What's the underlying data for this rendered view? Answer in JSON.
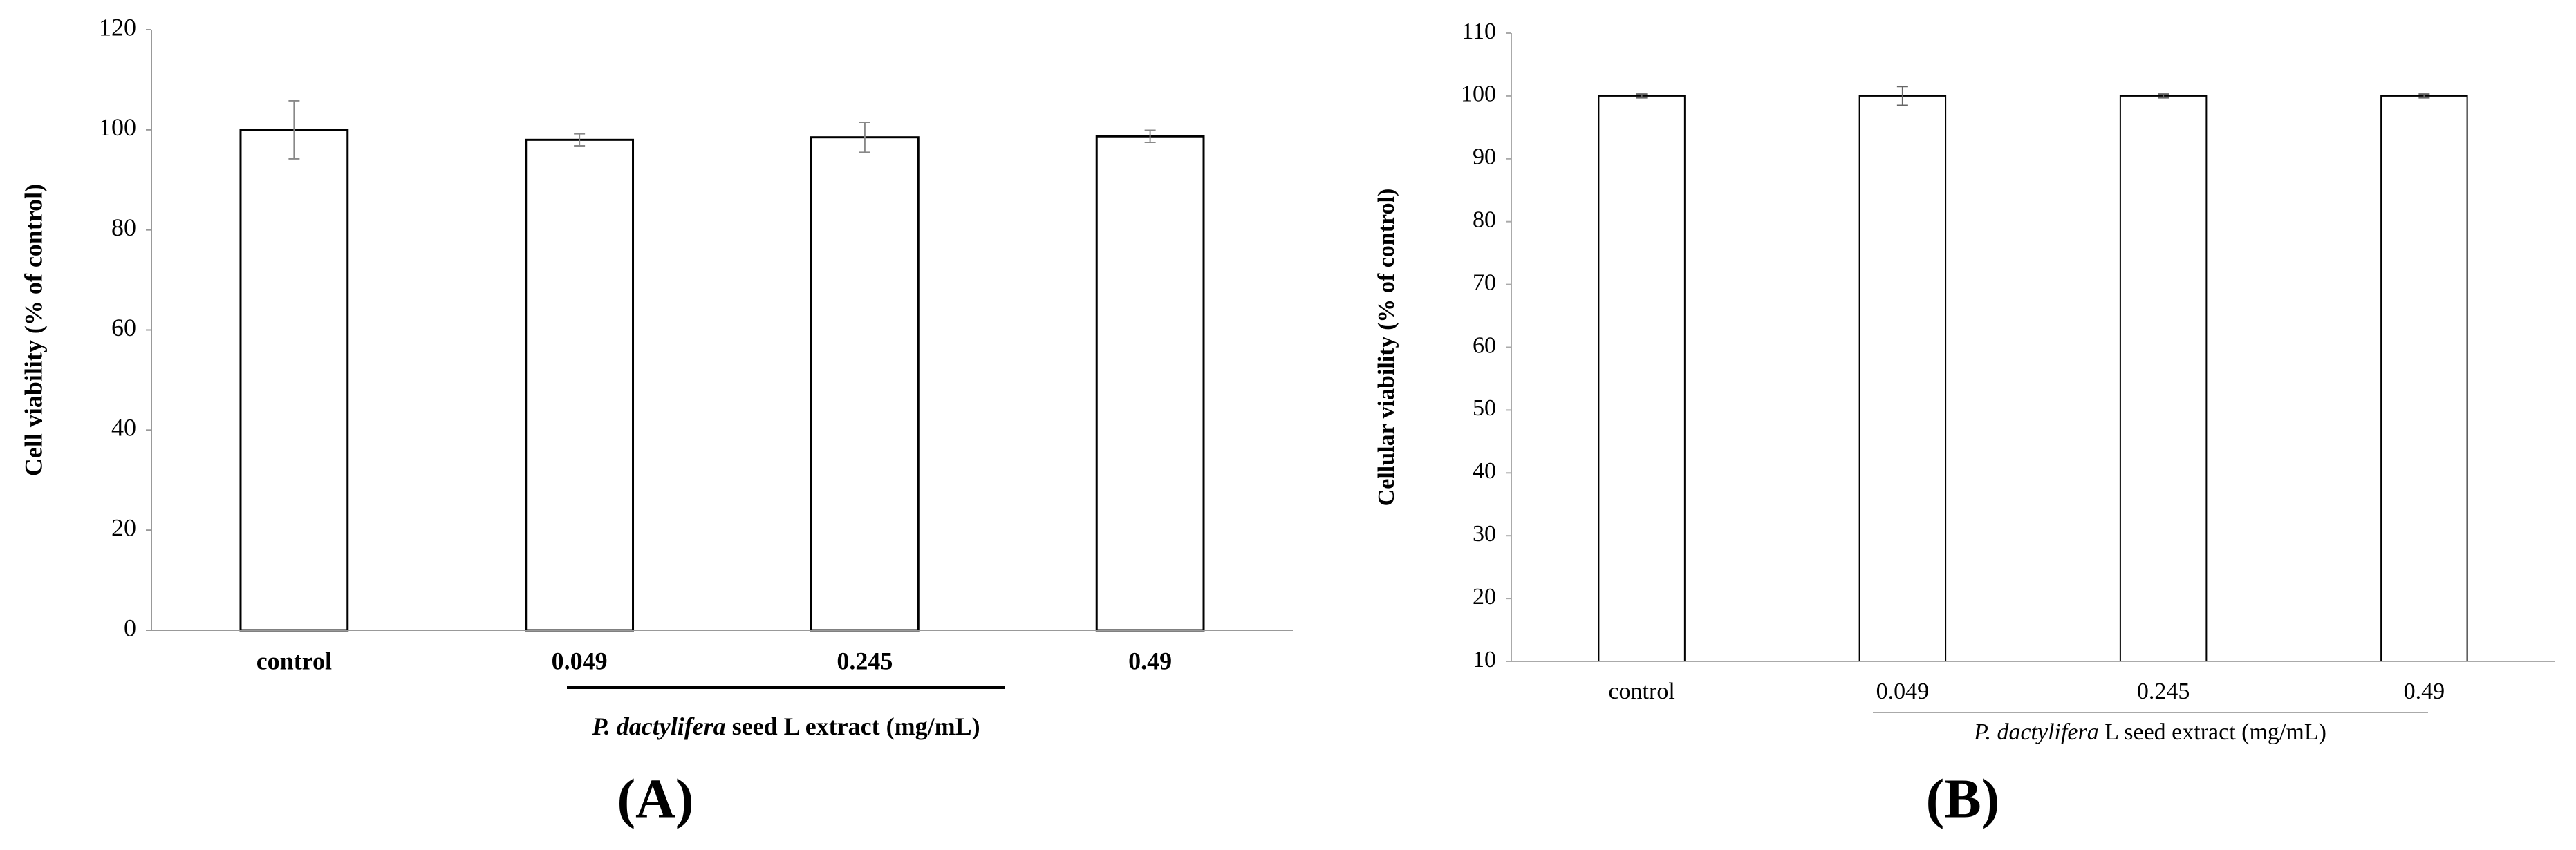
{
  "chart_data": [
    {
      "type": "bar",
      "panel_label": "(A)",
      "ylabel": "Cell viability (% of control)",
      "xlabel": [
        "P. dactylifera",
        " seed L extract (mg/mL)"
      ],
      "categories": [
        "control",
        "0.049",
        "0.245",
        "0.49"
      ],
      "values": [
        100,
        98,
        98.5,
        98.7
      ],
      "errors": [
        5.8,
        1.2,
        3,
        1.2
      ],
      "color": "#ffffff",
      "ylim": [
        0,
        120
      ],
      "yticks": [
        0,
        20,
        40,
        60,
        80,
        100,
        120
      ]
    },
    {
      "type": "bar",
      "panel_label": "(B)",
      "ylabel": "Cellular viability (% of control)",
      "xlabel": [
        "P. dactylifera",
        " L seed extract (mg/mL)"
      ],
      "categories": [
        "control",
        "0.049",
        "0.245",
        "0.49"
      ],
      "values": [
        100,
        100,
        100,
        100
      ],
      "errors": [
        0.3,
        1.5,
        0.3,
        0.3
      ],
      "color": "#ffffff",
      "ylim": [
        10,
        110
      ],
      "yticks": [
        10,
        20,
        30,
        40,
        50,
        60,
        70,
        80,
        90,
        100,
        110
      ]
    }
  ]
}
